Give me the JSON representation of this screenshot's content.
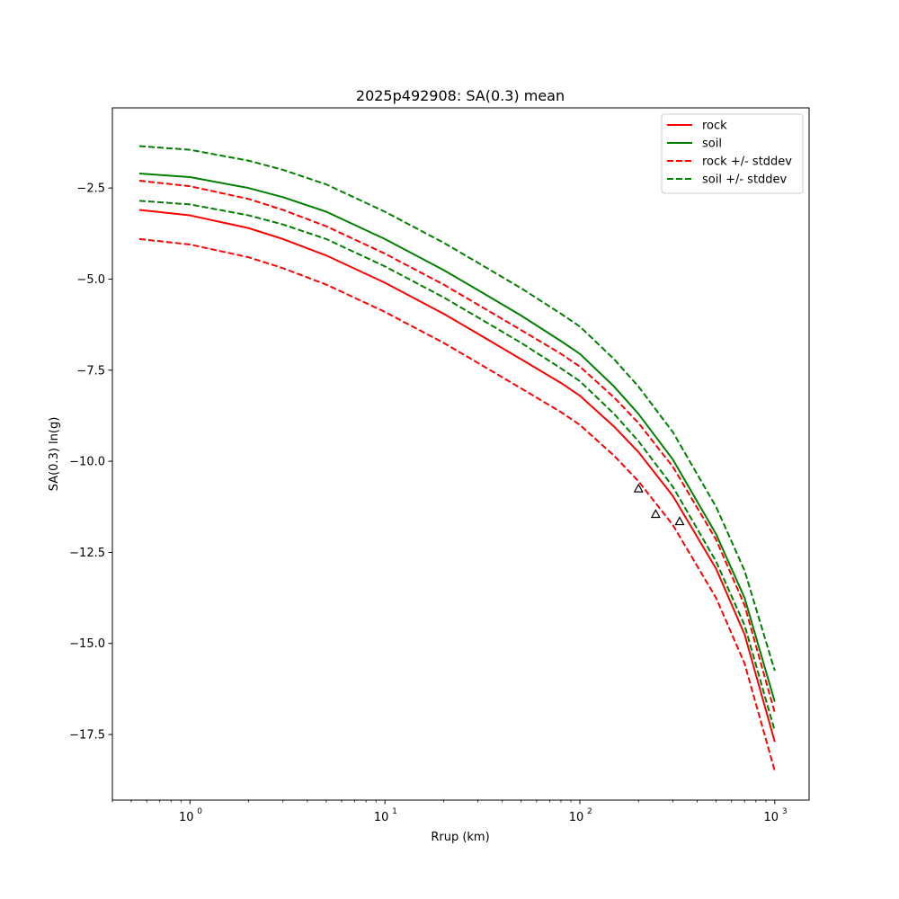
{
  "chart_data": {
    "type": "line",
    "title": "2025p492908: SA(0.3) mean",
    "xlabel": "Rrup (km)",
    "ylabel": "SA(0.3) ln(g)",
    "xscale": "log",
    "xlim": [
      0.4,
      1500
    ],
    "ylim": [
      -19.3,
      -0.3
    ],
    "x_ticks": [
      {
        "value": 1,
        "base": "10",
        "exp": "0"
      },
      {
        "value": 10,
        "base": "10",
        "exp": "1"
      },
      {
        "value": 100,
        "base": "10",
        "exp": "2"
      },
      {
        "value": 1000,
        "base": "10",
        "exp": "3"
      }
    ],
    "y_ticks": [
      {
        "value": -2.5,
        "label": "−2.5"
      },
      {
        "value": -5.0,
        "label": "−5.0"
      },
      {
        "value": -7.5,
        "label": "−7.5"
      },
      {
        "value": -10.0,
        "label": "−10.0"
      },
      {
        "value": -12.5,
        "label": "−12.5"
      },
      {
        "value": -15.0,
        "label": "−15.0"
      },
      {
        "value": -17.5,
        "label": "−17.5"
      }
    ],
    "grid": false,
    "legend_position": "top-right",
    "legend": [
      {
        "label": "rock",
        "color": "#ff0000",
        "dash": "solid"
      },
      {
        "label": "soil",
        "color": "#008000",
        "dash": "solid"
      },
      {
        "label": "rock +/- stddev",
        "color": "#ff0000",
        "dash": "dashed"
      },
      {
        "label": "soil +/- stddev",
        "color": "#008000",
        "dash": "dashed"
      }
    ],
    "x": [
      0.55,
      1,
      2,
      3,
      5,
      10,
      20,
      30,
      50,
      80,
      100,
      150,
      200,
      300,
      500,
      700,
      1000
    ],
    "series": [
      {
        "group": "rock",
        "role": "mean",
        "color": "#ff0000",
        "dash": "solid",
        "values": [
          -3.1,
          -3.25,
          -3.6,
          -3.9,
          -4.35,
          -5.1,
          -5.95,
          -6.5,
          -7.2,
          -7.85,
          -8.2,
          -9.05,
          -9.75,
          -10.95,
          -12.95,
          -14.75,
          -17.7
        ]
      },
      {
        "group": "rock",
        "role": "mean+stddev",
        "color": "#ff0000",
        "dash": "dashed",
        "values": [
          -2.3,
          -2.45,
          -2.8,
          -3.1,
          -3.55,
          -4.3,
          -5.15,
          -5.7,
          -6.4,
          -7.05,
          -7.4,
          -8.25,
          -8.95,
          -10.15,
          -12.15,
          -13.95,
          -16.9
        ]
      },
      {
        "group": "rock",
        "role": "mean-stddev",
        "color": "#ff0000",
        "dash": "dashed",
        "values": [
          -3.9,
          -4.05,
          -4.4,
          -4.7,
          -5.15,
          -5.9,
          -6.75,
          -7.3,
          -8.0,
          -8.65,
          -9.0,
          -9.85,
          -10.55,
          -11.75,
          -13.75,
          -15.55,
          -18.5
        ]
      },
      {
        "group": "soil",
        "role": "mean",
        "color": "#008000",
        "dash": "solid",
        "values": [
          -2.1,
          -2.2,
          -2.5,
          -2.75,
          -3.15,
          -3.9,
          -4.75,
          -5.3,
          -6.0,
          -6.7,
          -7.05,
          -7.95,
          -8.7,
          -9.95,
          -12.0,
          -13.75,
          -16.6
        ]
      },
      {
        "group": "soil",
        "role": "mean+stddev",
        "color": "#008000",
        "dash": "dashed",
        "values": [
          -1.35,
          -1.45,
          -1.75,
          -2.0,
          -2.4,
          -3.15,
          -4.0,
          -4.55,
          -5.25,
          -5.95,
          -6.3,
          -7.2,
          -7.95,
          -9.2,
          -11.25,
          -13.0,
          -15.75
        ]
      },
      {
        "group": "soil",
        "role": "mean-stddev",
        "color": "#008000",
        "dash": "dashed",
        "values": [
          -2.85,
          -2.95,
          -3.25,
          -3.5,
          -3.9,
          -4.65,
          -5.5,
          -6.05,
          -6.75,
          -7.45,
          -7.8,
          -8.7,
          -9.45,
          -10.7,
          -12.75,
          -14.5,
          -17.4
        ]
      }
    ],
    "observations": {
      "marker": "triangle",
      "color": "#000000",
      "points": [
        {
          "x": 200,
          "y": -10.75
        },
        {
          "x": 245,
          "y": -11.45
        },
        {
          "x": 325,
          "y": -11.65
        }
      ]
    }
  }
}
